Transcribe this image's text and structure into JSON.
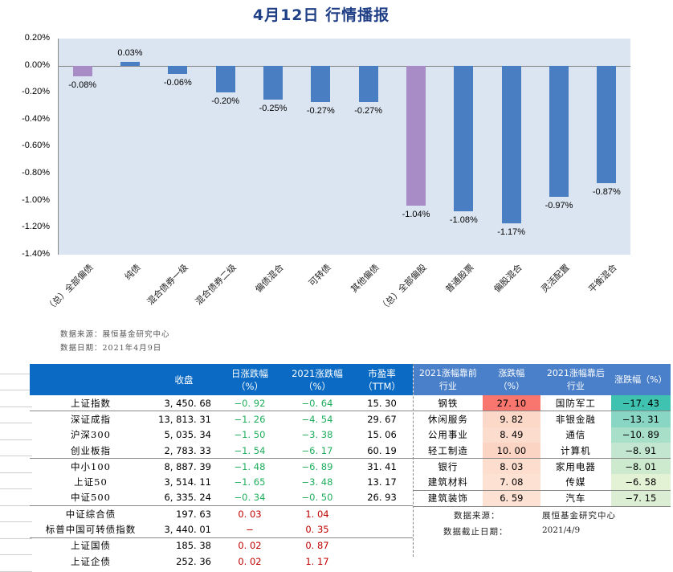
{
  "header": {
    "title": "4月12日  行情播报"
  },
  "chart_data": {
    "type": "bar",
    "title": "4月12日 行情播报",
    "xlabel": "",
    "ylabel": "",
    "ylim": [
      -1.4,
      0.2
    ],
    "yticks": [
      "0.20%",
      "0.00%",
      "-0.20%",
      "-0.40%",
      "-0.60%",
      "-0.80%",
      "-1.00%",
      "-1.20%",
      "-1.40%"
    ],
    "categories": [
      "（总）全部偏债",
      "纯债",
      "混合债券一级",
      "混合债券二级",
      "偏债混合",
      "可转债",
      "其他偏债",
      "（总）全部偏股",
      "普通股票",
      "偏股混合",
      "灵活配置",
      "平衡混合"
    ],
    "values": [
      -0.08,
      0.03,
      -0.06,
      -0.2,
      -0.25,
      -0.27,
      -0.27,
      -1.04,
      -1.08,
      -1.17,
      -0.97,
      -0.87
    ],
    "labels": [
      "-0.08%",
      "0.03%",
      "-0.06%",
      "-0.20%",
      "-0.25%",
      "-0.27%",
      "-0.27%",
      "-1.04%",
      "-1.08%",
      "-1.17%",
      "-0.97%",
      "-0.87%"
    ],
    "bar_colors": [
      "#a88cc6",
      "#4a7ec2",
      "#4a7ec2",
      "#4a7ec2",
      "#4a7ec2",
      "#4a7ec2",
      "#4a7ec2",
      "#a88cc6",
      "#4a7ec2",
      "#4a7ec2",
      "#4a7ec2",
      "#4a7ec2"
    ],
    "plot_background": "#dbe5f1",
    "grid": false,
    "legend": "none"
  },
  "chart_source": {
    "line1": "数据来源：展恒基金研究中心",
    "line2": "数据日期：2021年4月9日"
  },
  "index_table": {
    "headers": [
      "",
      "收盘",
      "日涨跌幅\n（%）",
      "2021涨跌幅\n（%）",
      "市盈率\n（TTM）"
    ],
    "header_close": "收盘",
    "header_daily_1": "日涨跌幅",
    "header_daily_2": "（%）",
    "header_ytd_1": "2021涨跌幅",
    "header_ytd_2": "（%）",
    "header_pe_1": "市盈率",
    "header_pe_2": "（TTM）",
    "rows": [
      {
        "name": "上证指数",
        "close": "3, 450. 68",
        "daily": "−0. 92",
        "ytd": "−0. 64",
        "pe": "15. 30"
      },
      {
        "name": "深证成指",
        "close": "13, 813. 31",
        "daily": "−1. 26",
        "ytd": "−4. 54",
        "pe": "29. 67"
      },
      {
        "name": "沪深300",
        "close": "5, 035. 34",
        "daily": "−1. 50",
        "ytd": "−3. 38",
        "pe": "15. 06"
      },
      {
        "name": "创业板指",
        "close": "2, 783. 33",
        "daily": "−1. 54",
        "ytd": "−6. 17",
        "pe": "60. 19"
      },
      {
        "name": "中小100",
        "close": "8, 887. 39",
        "daily": "−1. 48",
        "ytd": "−6. 89",
        "pe": "31. 41"
      },
      {
        "name": "上证50",
        "close": "3, 514. 11",
        "daily": "−1. 65",
        "ytd": "−3. 48",
        "pe": "13. 17"
      },
      {
        "name": "中证500",
        "close": "6, 335. 24",
        "daily": "−0. 34",
        "ytd": "−0. 50",
        "pe": "26. 93"
      },
      {
        "name": "中证综合债",
        "close": "197. 63",
        "daily": "0. 03",
        "ytd": "1. 04",
        "pe": ""
      },
      {
        "name": "标普中国可转债指数",
        "close": "3, 440. 01",
        "daily": "−",
        "ytd": "0. 35",
        "pe": ""
      },
      {
        "name": "上证国债",
        "close": "185. 38",
        "daily": "0. 02",
        "ytd": "0. 87",
        "pe": ""
      },
      {
        "name": "上证企债",
        "close": "252. 36",
        "daily": "0. 02",
        "ytd": "1. 17",
        "pe": ""
      }
    ]
  },
  "industry_table": {
    "header_top_1": "2021涨幅靠前",
    "header_top_2": "行业",
    "header_chg_1": "涨跌幅",
    "header_chg_2": "（%）",
    "header_bottom_1": "2021涨幅靠后",
    "header_bottom_2": "行业",
    "header_chg_b": "涨跌幅（%）",
    "rows": [
      {
        "top": "钢铁",
        "top_chg": "27. 10",
        "top_color": "#f8766d",
        "bottom": "国防军工",
        "bottom_chg": "−17. 43",
        "bottom_color": "#3fc2b0"
      },
      {
        "top": "休闲服务",
        "top_chg": "9. 82",
        "top_color": "#fcd8c8",
        "bottom": "非银金融",
        "bottom_chg": "−13. 31",
        "bottom_color": "#88d6c3"
      },
      {
        "top": "公用事业",
        "top_chg": "8. 49",
        "top_color": "#fcdccd",
        "bottom": "通信",
        "bottom_chg": "−10. 89",
        "bottom_color": "#a7dfc9"
      },
      {
        "top": "轻工制造",
        "top_chg": "10. 00",
        "top_color": "#fbd4c3",
        "bottom": "计算机",
        "bottom_chg": "−8. 91",
        "bottom_color": "#c2e6cf"
      },
      {
        "top": "银行",
        "top_chg": "8. 03",
        "top_color": "#fcddce",
        "bottom": "家用电器",
        "bottom_chg": "−8. 01",
        "bottom_color": "#cdeacf"
      },
      {
        "top": "建筑材料",
        "top_chg": "7. 08",
        "top_color": "#fde1d3",
        "bottom": "传媒",
        "bottom_chg": "−6. 58",
        "bottom_color": "#e3f1d5"
      },
      {
        "top": "建筑装饰",
        "top_chg": "6. 59",
        "top_color": "#fde2d4",
        "bottom": "汽车",
        "bottom_chg": "−7. 15",
        "bottom_color": "#dbeed3"
      }
    ],
    "source_label": "数据来源：",
    "source_value": "展恒基金研究中心",
    "date_label": "数据截止日期：",
    "date_value": "2021/4/9"
  }
}
